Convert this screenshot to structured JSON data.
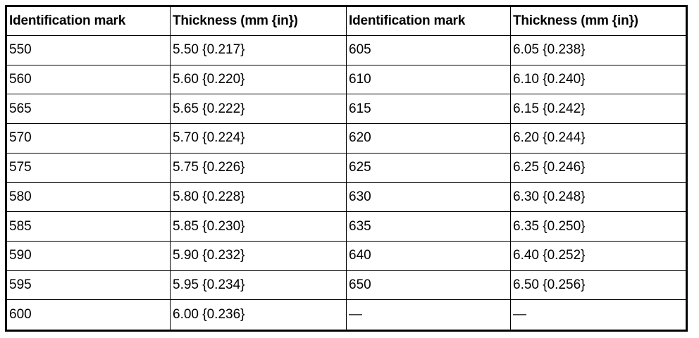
{
  "table": {
    "header": [
      "Identification mark",
      "Thickness (mm {in})",
      "Identification mark",
      "Thickness (mm {in})"
    ],
    "rows": [
      [
        "550",
        "5.50 {0.217}",
        "605",
        "6.05 {0.238}"
      ],
      [
        "560",
        "5.60 {0.220}",
        "610",
        "6.10 {0.240}"
      ],
      [
        "565",
        "5.65 {0.222}",
        "615",
        "6.15 {0.242}"
      ],
      [
        "570",
        "5.70 {0.224}",
        "620",
        "6.20 {0.244}"
      ],
      [
        "575",
        "5.75 {0.226}",
        "625",
        "6.25 {0.246}"
      ],
      [
        "580",
        "5.80 {0.228}",
        "630",
        "6.30 {0.248}"
      ],
      [
        "585",
        "5.85 {0.230}",
        "635",
        "6.35 {0.250}"
      ],
      [
        "590",
        "5.90 {0.232}",
        "640",
        "6.40 {0.252}"
      ],
      [
        "595",
        "5.95 {0.234}",
        "650",
        "6.50 {0.256}"
      ],
      [
        "600",
        "6.00 {0.236}",
        "—",
        "—"
      ]
    ]
  }
}
